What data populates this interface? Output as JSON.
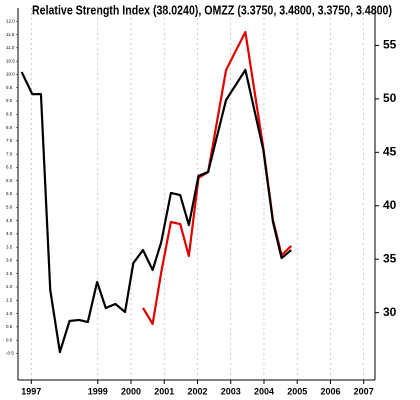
{
  "chart_data": {
    "type": "line",
    "title": "Relative Strength Index (38.0240), OMZZ (3.3750, 3.4800, 3.3750, 3.4800)",
    "series": [
      {
        "name": "Relative Strength Index",
        "color": "#000000",
        "axis": "y",
        "x": [
          1996.71,
          1997.03,
          1997.29,
          1997.57,
          1997.86,
          1998.15,
          1998.44,
          1998.7,
          1998.98,
          1999.24,
          1999.53,
          1999.82,
          2000.07,
          2000.36,
          2000.65,
          2000.91,
          2001.2,
          2001.48,
          2001.74,
          2002.03,
          2002.32,
          2002.86,
          2003.44,
          2003.98,
          2004.27,
          2004.53,
          2004.82
        ],
        "values": [
          10.09,
          9.26,
          9.26,
          1.89,
          -0.45,
          0.72,
          0.76,
          0.68,
          2.19,
          1.21,
          1.36,
          1.06,
          2.9,
          3.39,
          2.64,
          3.69,
          5.54,
          5.46,
          4.33,
          6.18,
          6.33,
          9.04,
          10.17,
          7.16,
          4.45,
          3.09,
          3.39
        ]
      },
      {
        "name": "OMZZ",
        "color": "#e00000",
        "axis": "y2",
        "x": [
          2000.36,
          2000.65,
          2000.91,
          2001.2,
          2001.48,
          2001.74,
          2002.03,
          2002.32,
          2002.86,
          2003.44,
          2003.98,
          2004.27,
          2004.53,
          2004.82
        ],
        "values": [
          30.44,
          28.94,
          33.8,
          38.48,
          38.29,
          35.3,
          42.6,
          43.16,
          52.7,
          56.25,
          45.4,
          38.67,
          35.39,
          36.24
        ]
      }
    ],
    "xlim": [
      1996.6,
      2007.34
    ],
    "xticks": [
      1997,
      1999,
      2000,
      2001,
      2002,
      2003,
      2004,
      2005,
      2006,
      2007
    ],
    "ylim": [
      -1.5,
      12.5
    ],
    "yticks": [
      -0.5,
      {
        "value": 0,
        "label": "0.0"
      },
      0.5,
      {
        "value": 1,
        "label": "1.0"
      },
      1.5,
      {
        "value": 2,
        "label": "2.0"
      },
      2.5,
      {
        "value": 3,
        "label": "3.0"
      },
      3.5,
      {
        "value": 4,
        "label": "4.0"
      },
      4.5,
      {
        "value": 5,
        "label": "5.0"
      },
      5.5,
      {
        "value": 6,
        "label": "6.0"
      },
      6.5,
      {
        "value": 7,
        "label": "7.0"
      },
      7.5,
      {
        "value": 8,
        "label": "8.0"
      },
      8.5,
      {
        "value": 9,
        "label": "9.0"
      },
      9.5,
      {
        "value": 10,
        "label": "10.0"
      },
      10.5,
      {
        "value": 11,
        "label": "11.0"
      },
      11.5,
      {
        "value": 12,
        "label": "12.0"
      }
    ],
    "y2lim": [
      23.7,
      58.5
    ],
    "y2ticks": [
      30,
      35,
      40,
      45,
      50,
      55
    ],
    "grid": true
  }
}
